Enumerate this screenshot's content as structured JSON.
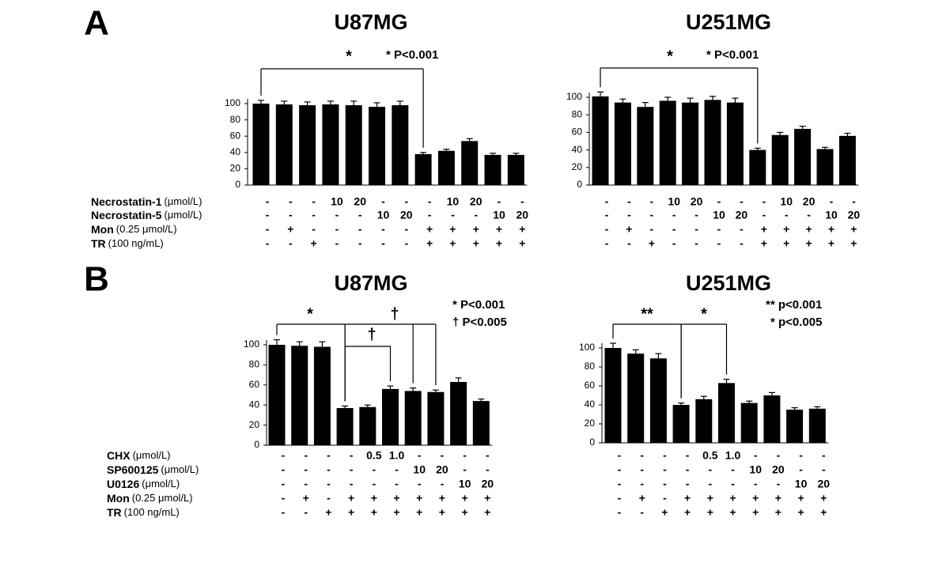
{
  "panel_labels": [
    "A",
    "B"
  ],
  "chart_data": [
    {
      "type": "bar",
      "title": "U87MG",
      "color": "#000000",
      "values": [
        100,
        99,
        98,
        99,
        98,
        96,
        98,
        38,
        42,
        54,
        37,
        37
      ],
      "errors": [
        4,
        4,
        4,
        4,
        5,
        5,
        5,
        2,
        2,
        3,
        2,
        2
      ],
      "ylim": [
        0,
        100
      ],
      "yticks": [
        0,
        20,
        40,
        60,
        80,
        100
      ],
      "condition_labels": [
        {
          "name": "Necrostatin-1",
          "unit": "(μmol/L)"
        },
        {
          "name": "Necrostatin-5",
          "unit": "(μmol/L)"
        },
        {
          "name": "Mon",
          "unit": "(0.25 μmol/L)"
        },
        {
          "name": "TR",
          "unit": "(100 ng/mL)"
        }
      ],
      "conditions": [
        [
          "-",
          "-",
          "-",
          "10",
          "20",
          "-",
          "-",
          "-",
          "10",
          "20",
          "-",
          "-"
        ],
        [
          "-",
          "-",
          "-",
          "-",
          "-",
          "10",
          "20",
          "-",
          "-",
          "-",
          "10",
          "20"
        ],
        [
          "-",
          "+",
          "-",
          "-",
          "-",
          "-",
          "-",
          "+",
          "+",
          "+",
          "+",
          "+"
        ],
        [
          "-",
          "-",
          "+",
          "-",
          "-",
          "-",
          "-",
          "+",
          "+",
          "+",
          "+",
          "+"
        ]
      ],
      "annotations": [
        "*"
      ],
      "notes": [
        "* P<0.001"
      ]
    },
    {
      "type": "bar",
      "title": "U251MG",
      "color": "#000000",
      "values": [
        101,
        94,
        89,
        96,
        94,
        97,
        94,
        40,
        57,
        64,
        41,
        56
      ],
      "errors": [
        5,
        4,
        5,
        4,
        5,
        4,
        5,
        2,
        3,
        3,
        2,
        3
      ],
      "ylim": [
        0,
        100
      ],
      "yticks": [
        0,
        20,
        40,
        60,
        80,
        100
      ],
      "conditions": [
        [
          "-",
          "-",
          "-",
          "10",
          "20",
          "-",
          "-",
          "-",
          "10",
          "20",
          "-",
          "-"
        ],
        [
          "-",
          "-",
          "-",
          "-",
          "-",
          "10",
          "20",
          "-",
          "-",
          "-",
          "10",
          "20"
        ],
        [
          "-",
          "+",
          "-",
          "-",
          "-",
          "-",
          "-",
          "+",
          "+",
          "+",
          "+",
          "+"
        ],
        [
          "-",
          "-",
          "+",
          "-",
          "-",
          "-",
          "-",
          "+",
          "+",
          "+",
          "+",
          "+"
        ]
      ],
      "annotations": [
        "*"
      ],
      "notes": [
        "* P<0.001"
      ]
    },
    {
      "type": "bar",
      "title": "U87MG",
      "color": "#000000",
      "values": [
        100,
        99,
        98,
        37,
        38,
        56,
        54,
        53,
        63,
        44
      ],
      "errors": [
        5,
        4,
        5,
        2,
        2,
        3,
        3,
        2,
        4,
        2
      ],
      "ylim": [
        0,
        100
      ],
      "yticks": [
        0,
        20,
        40,
        60,
        80,
        100
      ],
      "condition_labels": [
        {
          "name": "CHX",
          "unit": "(μmol/L)"
        },
        {
          "name": "SP600125",
          "unit": "(μmol/L)"
        },
        {
          "name": "U0126",
          "unit": "(μmol/L)"
        },
        {
          "name": "Mon",
          "unit": "(0.25 μmol/L)"
        },
        {
          "name": "TR",
          "unit": "(100 ng/mL)"
        }
      ],
      "conditions": [
        [
          "-",
          "-",
          "-",
          "-",
          "0.5",
          "1.0",
          "-",
          "-",
          "-",
          "-"
        ],
        [
          "-",
          "-",
          "-",
          "-",
          "-",
          "-",
          "10",
          "20",
          "-",
          "-"
        ],
        [
          "-",
          "-",
          "-",
          "-",
          "-",
          "-",
          "-",
          "-",
          "10",
          "20"
        ],
        [
          "-",
          "+",
          "-",
          "+",
          "+",
          "+",
          "+",
          "+",
          "+",
          "+"
        ],
        [
          "-",
          "-",
          "+",
          "+",
          "+",
          "+",
          "+",
          "+",
          "+",
          "+"
        ]
      ],
      "annotations": [
        "*",
        "†",
        "†"
      ],
      "notes": [
        "* P<0.001",
        "† P<0.005"
      ]
    },
    {
      "type": "bar",
      "title": "U251MG",
      "color": "#000000",
      "values": [
        100,
        94,
        89,
        40,
        46,
        63,
        42,
        50,
        35,
        36
      ],
      "errors": [
        5,
        4,
        5,
        2,
        3,
        4,
        2,
        3,
        2,
        2
      ],
      "ylim": [
        0,
        100
      ],
      "yticks": [
        0,
        20,
        40,
        60,
        80,
        100
      ],
      "conditions": [
        [
          "-",
          "-",
          "-",
          "-",
          "0.5",
          "1.0",
          "-",
          "-",
          "-",
          "-"
        ],
        [
          "-",
          "-",
          "-",
          "-",
          "-",
          "-",
          "10",
          "20",
          "-",
          "-"
        ],
        [
          "-",
          "-",
          "-",
          "-",
          "-",
          "-",
          "-",
          "-",
          "10",
          "20"
        ],
        [
          "-",
          "+",
          "-",
          "+",
          "+",
          "+",
          "+",
          "+",
          "+",
          "+"
        ],
        [
          "-",
          "-",
          "+",
          "+",
          "+",
          "+",
          "+",
          "+",
          "+",
          "+"
        ]
      ],
      "annotations": [
        "**",
        "*"
      ],
      "notes": [
        "** p<0.001",
        "* p<0.005"
      ]
    }
  ]
}
